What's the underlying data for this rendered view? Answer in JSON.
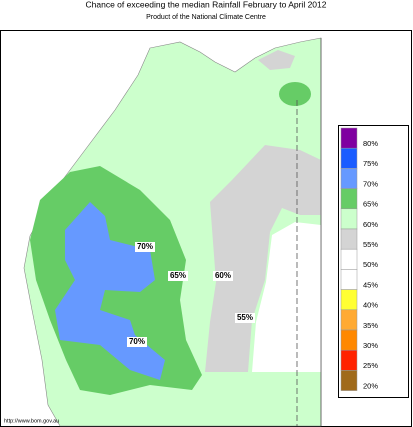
{
  "header": {
    "title": "Chance of exceeding the median Rainfall February to April 2012",
    "subtitle": "Product of the National Climate Centre"
  },
  "map_labels": [
    "70%",
    "65%",
    "60%",
    "55%",
    "70%"
  ],
  "legend": [
    {
      "label": "80%",
      "color": "#7f00a0"
    },
    {
      "label": "75%",
      "color": "#1a5cff"
    },
    {
      "label": "70%",
      "color": "#6699ff"
    },
    {
      "label": "65%",
      "color": "#66cc66"
    },
    {
      "label": "60%",
      "color": "#ccffcc"
    },
    {
      "label": "55%",
      "color": "#d4d4d4"
    },
    {
      "label": "50%",
      "color": "#ffffff"
    },
    {
      "label": "45%",
      "color": "#ffffff"
    },
    {
      "label": "40%",
      "color": "#ffff33"
    },
    {
      "label": "35%",
      "color": "#ffaa33"
    },
    {
      "label": "30%",
      "color": "#ff8800"
    },
    {
      "label": "25%",
      "color": "#ff2200"
    },
    {
      "label": "20%",
      "color": "#a06a1a"
    }
  ],
  "footer": {
    "url": "http://www.bom.gov.au"
  }
}
